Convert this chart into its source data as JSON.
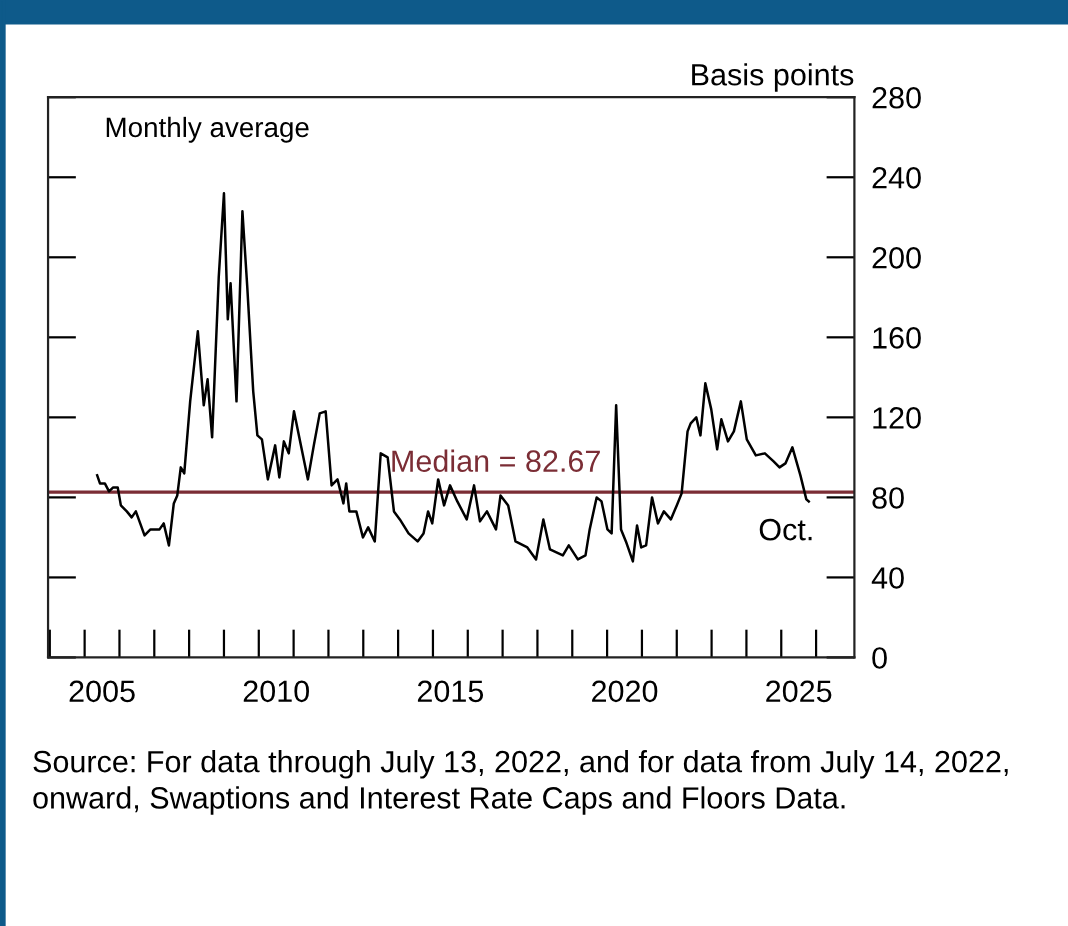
{
  "chart_data": {
    "type": "line",
    "ylabel": "Basis points",
    "x": [
      2005.36,
      2005.44,
      2005.58,
      2005.7,
      2005.82,
      2005.95,
      2006.04,
      2006.21,
      2006.35,
      2006.47,
      2006.72,
      2006.89,
      2007.15,
      2007.27,
      2007.42,
      2007.56,
      2007.66,
      2007.76,
      2007.86,
      2008.03,
      2008.25,
      2008.42,
      2008.53,
      2008.66,
      2008.85,
      2009.0,
      2009.11,
      2009.19,
      2009.36,
      2009.53,
      2009.67,
      2009.84,
      2009.96,
      2010.09,
      2010.26,
      2010.47,
      2010.59,
      2010.72,
      2010.86,
      2011.01,
      2011.15,
      2011.41,
      2011.58,
      2011.75,
      2011.92,
      2012.09,
      2012.26,
      2012.43,
      2012.51,
      2012.6,
      2012.8,
      2012.99,
      2013.14,
      2013.33,
      2013.5,
      2013.7,
      2013.88,
      2014.05,
      2014.3,
      2014.56,
      2014.73,
      2014.86,
      2014.98,
      2015.15,
      2015.32,
      2015.49,
      2015.7,
      2015.97,
      2016.18,
      2016.35,
      2016.55,
      2016.81,
      2016.94,
      2017.16,
      2017.37,
      2017.71,
      2017.96,
      2018.17,
      2018.36,
      2018.73,
      2018.9,
      2019.16,
      2019.38,
      2019.5,
      2019.7,
      2019.84,
      2020.01,
      2020.13,
      2020.26,
      2020.4,
      2020.54,
      2020.74,
      2020.86,
      2020.98,
      2021.12,
      2021.29,
      2021.46,
      2021.63,
      2021.83,
      2022.0,
      2022.14,
      2022.31,
      2022.4,
      2022.56,
      2022.68,
      2022.82,
      2022.99,
      2023.16,
      2023.28,
      2023.47,
      2023.64,
      2023.84,
      2024.01,
      2024.27,
      2024.53,
      2024.78,
      2024.95,
      2025.12,
      2025.32,
      2025.55,
      2025.72,
      2025.79
    ],
    "series": [
      {
        "color": "#000000",
        "values": [
          91,
          87,
          87,
          83,
          85,
          85,
          76,
          73,
          70,
          73,
          61,
          64,
          64,
          67,
          56,
          77,
          81,
          95,
          92,
          128,
          163,
          126,
          139,
          110,
          190,
          232,
          169,
          187,
          128,
          223,
          185,
          133,
          111,
          109,
          89,
          106,
          90,
          108,
          102,
          123,
          111,
          89,
          106,
          122,
          123,
          86,
          89,
          77,
          87,
          73,
          73,
          60,
          65,
          58,
          102,
          100,
          73,
          69,
          62,
          58,
          62,
          73,
          67,
          89,
          76,
          86,
          78,
          69,
          86,
          68,
          73,
          64,
          81,
          76,
          58,
          55,
          49,
          69,
          54,
          51,
          56,
          49,
          51,
          64,
          80,
          78,
          64,
          62,
          126,
          64,
          58,
          48,
          66,
          55,
          56,
          80,
          67,
          73,
          69,
          76,
          82,
          113,
          117,
          120,
          111,
          137,
          124,
          104,
          119,
          108,
          113,
          128,
          109,
          101,
          102,
          98,
          95,
          97,
          105,
          91,
          79,
          78
        ]
      }
    ],
    "xlim": [
      2003.95,
      2027.1
    ],
    "xticks": [
      {
        "value": 2004,
        "label": null
      },
      {
        "value": 2005,
        "label": null
      },
      {
        "value": 2006,
        "label": null
      },
      {
        "value": 2007,
        "label": null
      },
      {
        "value": 2008,
        "label": null
      },
      {
        "value": 2009,
        "label": null
      },
      {
        "value": 2010,
        "label": null
      },
      {
        "value": 2011,
        "label": null
      },
      {
        "value": 2012,
        "label": null
      },
      {
        "value": 2013,
        "label": null
      },
      {
        "value": 2014,
        "label": null
      },
      {
        "value": 2015,
        "label": null
      },
      {
        "value": 2016,
        "label": null
      },
      {
        "value": 2017,
        "label": null
      },
      {
        "value": 2018,
        "label": null
      },
      {
        "value": 2019,
        "label": null
      },
      {
        "value": 2020,
        "label": null
      },
      {
        "value": 2021,
        "label": null
      },
      {
        "value": 2022,
        "label": null
      },
      {
        "value": 2023,
        "label": null
      },
      {
        "value": 2024,
        "label": null
      },
      {
        "value": 2025,
        "label": null
      },
      {
        "value": 2026,
        "label": null
      },
      {
        "value": 2005.5,
        "label": "2005"
      },
      {
        "value": 2010.5,
        "label": "2010"
      },
      {
        "value": 2015.5,
        "label": "2015"
      },
      {
        "value": 2020.5,
        "label": "2020"
      },
      {
        "value": 2025.5,
        "label": "2025"
      }
    ],
    "ylim": [
      0,
      280
    ],
    "yticks": [
      0,
      40,
      80,
      120,
      160,
      200,
      240,
      280
    ],
    "ref_lines": [
      {
        "axis": "y",
        "value": 82.67,
        "label": "Median = 82.67",
        "color": "#7b2d35"
      }
    ],
    "annotations": [
      "Monthly average",
      {
        "text": "Oct.",
        "x": 2025.79,
        "y": 78
      },
      "Source: For data through July 13, 2022, and for data from July 14, 2022, onward, Swaptions and Interest Rate Caps and Floors Data."
    ],
    "grid": false,
    "legend": false,
    "marker": "none",
    "line_style": "solid"
  }
}
